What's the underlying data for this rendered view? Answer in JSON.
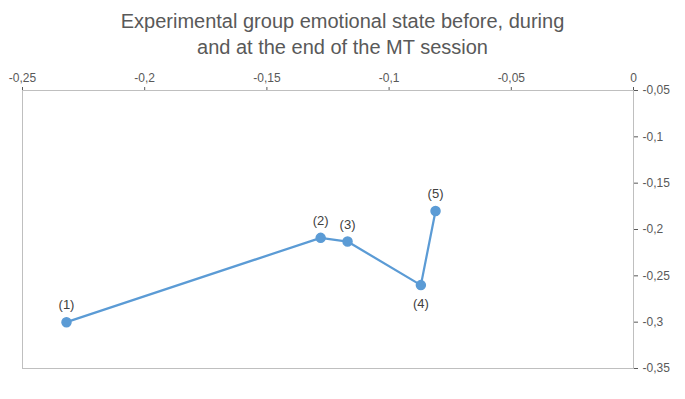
{
  "chart_data": {
    "type": "line",
    "title": "Experimental group emotional state before, during and at the end of the MT session",
    "x": [
      -0.232,
      -0.128,
      -0.117,
      -0.087,
      -0.081
    ],
    "values": [
      -0.3,
      -0.209,
      -0.213,
      -0.26,
      -0.18
    ],
    "labels": [
      "(1)",
      "(2)",
      "(3)",
      "(4)",
      "(5)"
    ],
    "color": "#5b9bd5",
    "marker": "circle",
    "xlim": [
      -0.25,
      0
    ],
    "xticks": [
      {
        "value": -0.25,
        "label": "-0,25"
      },
      {
        "value": -0.2,
        "label": "-0,2"
      },
      {
        "value": -0.15,
        "label": "-0,15"
      },
      {
        "value": -0.1,
        "label": "-0,1"
      },
      {
        "value": -0.05,
        "label": "-0,05"
      },
      0
    ],
    "ylim": [
      -0.35,
      -0.05
    ],
    "yticks": [
      {
        "value": -0.05,
        "label": "-0,05"
      },
      {
        "value": -0.1,
        "label": "-0,1"
      },
      {
        "value": -0.15,
        "label": "-0,15"
      },
      {
        "value": -0.2,
        "label": "-0,2"
      },
      {
        "value": -0.25,
        "label": "-0,25"
      },
      {
        "value": -0.3,
        "label": "-0,3"
      },
      {
        "value": -0.35,
        "label": "-0,35"
      }
    ],
    "grid": false
  }
}
